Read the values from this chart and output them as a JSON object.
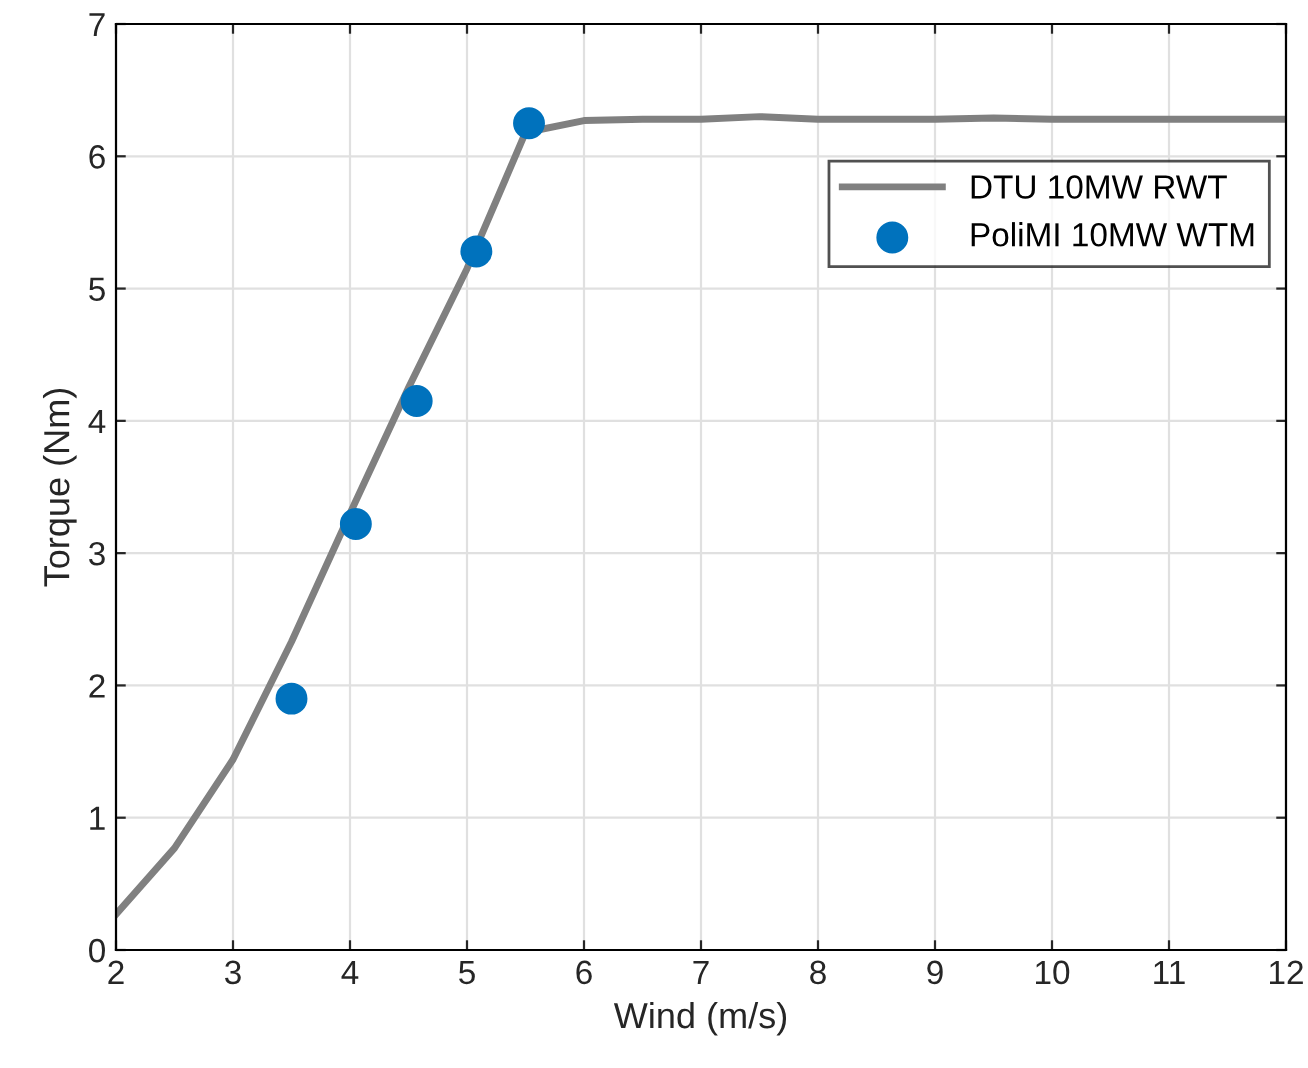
{
  "chart_data": {
    "type": "line",
    "xlabel": "Wind (m/s)",
    "ylabel": "Torque (Nm)",
    "xlim": [
      2,
      12
    ],
    "ylim": [
      0,
      7
    ],
    "xticks": [
      2,
      3,
      4,
      5,
      6,
      7,
      8,
      9,
      10,
      11,
      12
    ],
    "yticks": [
      0,
      1,
      2,
      3,
      4,
      5,
      6,
      7
    ],
    "grid": true,
    "legend": "top right",
    "series": [
      {
        "name": "DTU 10MW RWT",
        "color": "#808080",
        "marker": "none",
        "x": [
          2,
          2.5,
          3,
          3.5,
          4,
          4.5,
          5,
          5.5,
          6,
          6.5,
          7,
          7.5,
          8,
          8.5,
          9,
          9.5,
          10,
          10.5,
          11,
          11.5,
          12
        ],
        "values": [
          0.27,
          0.77,
          1.44,
          2.33,
          3.3,
          4.25,
          5.15,
          6.18,
          6.27,
          6.28,
          6.28,
          6.3,
          6.28,
          6.28,
          6.28,
          6.29,
          6.28,
          6.28,
          6.28,
          6.28,
          6.28
        ]
      },
      {
        "name": "PoliMI 10MW WTM",
        "type": "scatter",
        "color": "#0072bd",
        "marker": "circle",
        "x": [
          3.5,
          4.05,
          4.57,
          5.08,
          5.53
        ],
        "values": [
          1.9,
          3.22,
          4.15,
          5.28,
          6.25
        ]
      }
    ]
  }
}
